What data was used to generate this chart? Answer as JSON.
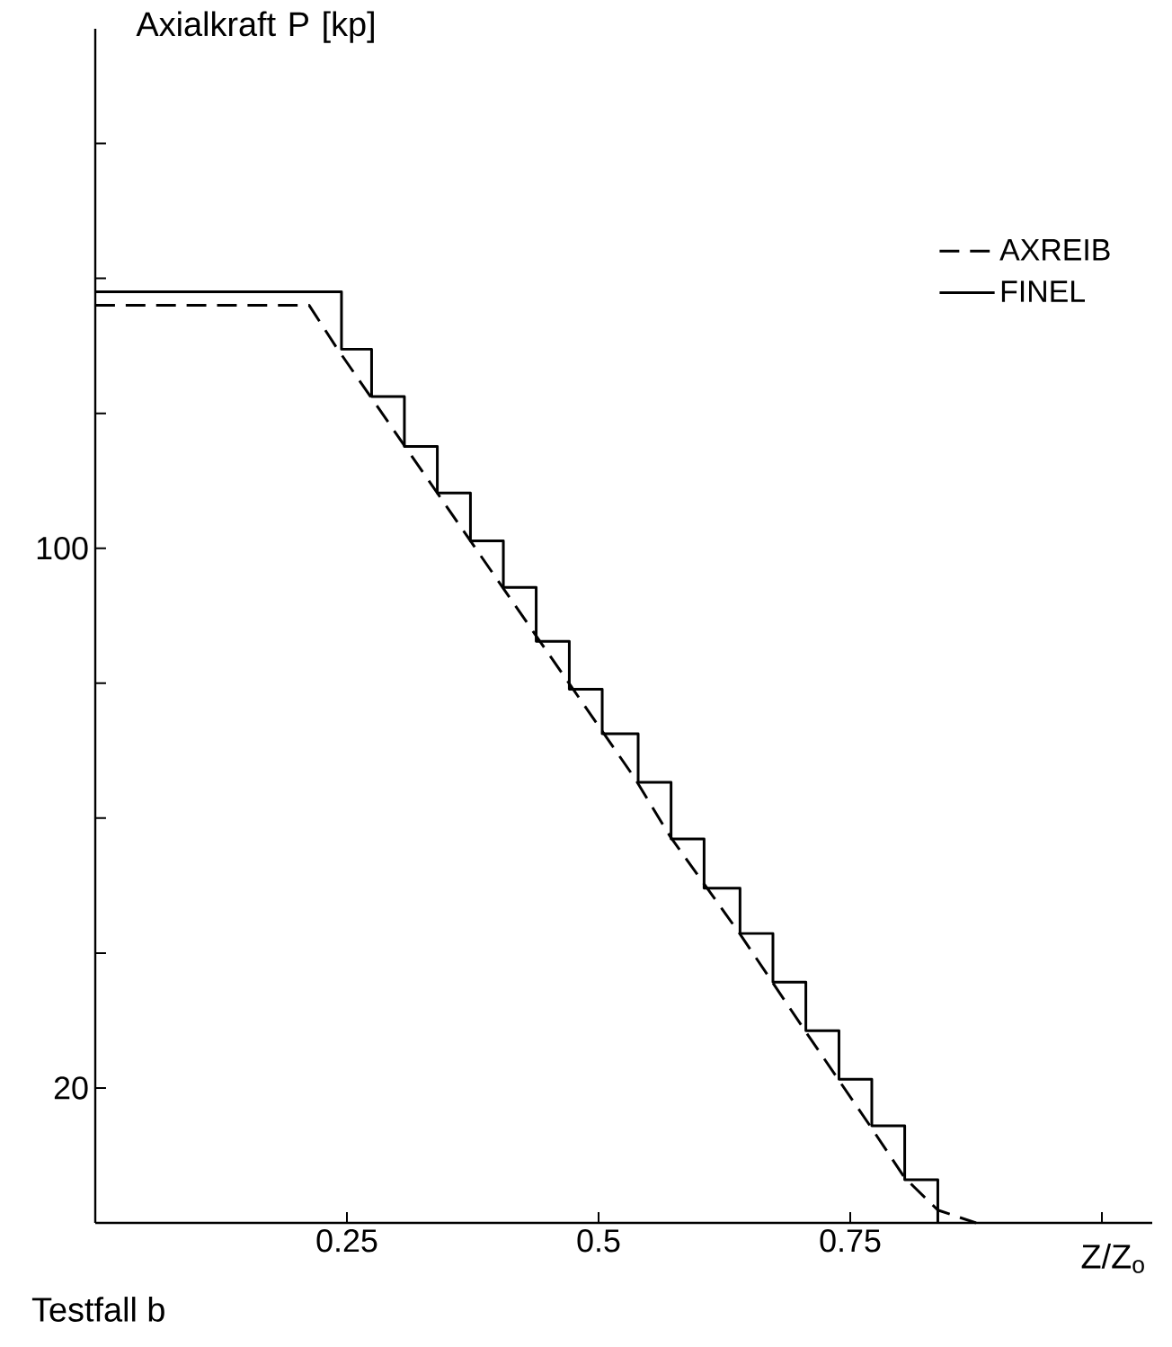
{
  "chart_data": {
    "type": "line",
    "xlabel": "Z/Z$_{o}$",
    "ylabel": "Axialkraft P [kp]",
    "annotations": [
      "Testfall b"
    ],
    "xlim": [
      0,
      1.05
    ],
    "ylim": [
      0,
      177
    ],
    "xticks": [
      0.25,
      0.5,
      0.75,
      {
        "value": 1,
        "label": null
      }
    ],
    "yticks": [
      20,
      {
        "value": 40,
        "label": null
      },
      {
        "value": 60,
        "label": null
      },
      {
        "value": 80,
        "label": null
      },
      100,
      {
        "value": 120,
        "label": null
      },
      {
        "value": 140,
        "label": null
      },
      {
        "value": 160,
        "label": null
      }
    ],
    "legend": "top right",
    "grid": false,
    "series": [
      {
        "name": "AXREIB",
        "type": "line",
        "line_style": "dashed",
        "color": "#000000",
        "x": [
          0,
          0.2125,
          0.239,
          0.536,
          0.571,
          0.641,
          0.705,
          0.771,
          0.804,
          0.837,
          0.875
        ],
        "values": [
          136,
          136,
          129.9,
          65.9,
          57.3,
          42.7,
          28.5,
          14.1,
          6.7,
          1.9,
          0
        ]
      },
      {
        "name": "FINEL",
        "type": "step",
        "line_style": "solid",
        "color": "#000000",
        "x": [
          0,
          0.2446,
          0.2745,
          0.3071,
          0.3398,
          0.3727,
          0.4054,
          0.438,
          0.4709,
          0.5036,
          0.5393,
          0.572,
          0.6048,
          0.6405,
          0.6732,
          0.7059,
          0.7388,
          0.7714,
          0.8041,
          0.837
        ],
        "values": [
          138,
          129.5,
          122.5,
          115.1,
          108.2,
          101.1,
          94.2,
          86.2,
          79.1,
          72.5,
          65.3,
          56.9,
          49.6,
          42.9,
          35.7,
          28.5,
          21.3,
          14.4,
          6.4,
          0
        ]
      }
    ]
  }
}
